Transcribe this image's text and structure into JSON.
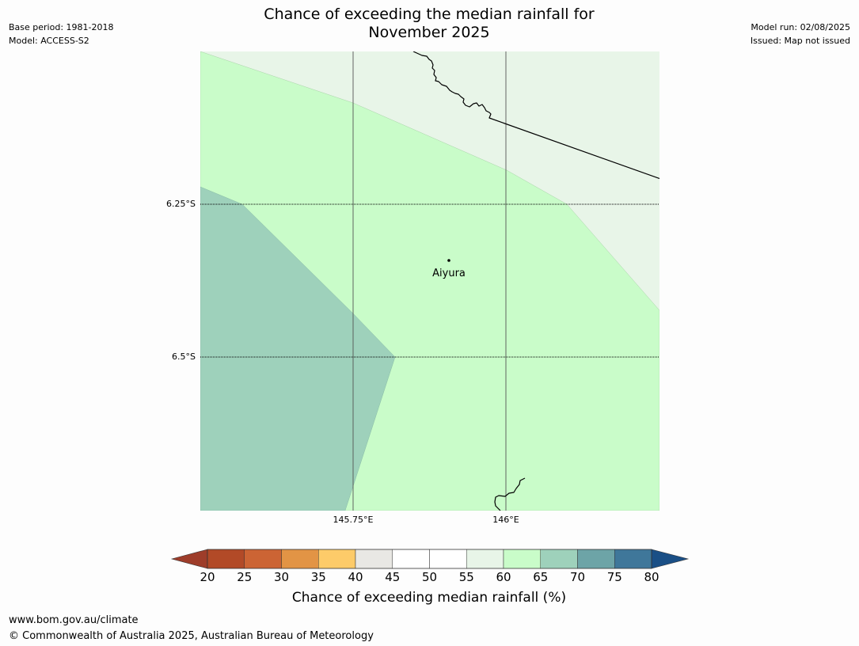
{
  "header": {
    "base_period": "Base period: 1981-2018",
    "model": "Model: ACCESS-S2",
    "model_run": "Model run: 02/08/2025",
    "issued": "Issued: Map not issued",
    "title_line1": "Chance of exceeding the median rainfall for",
    "title_line2": "November 2025"
  },
  "map": {
    "place_name": "Aiyura",
    "lat_labels": [
      "6.25°S",
      "6.5°S"
    ],
    "lon_labels": [
      "145.75°E",
      "146°E"
    ],
    "region_colors": {
      "band_55_60": "#e8f5e8",
      "band_60_65": "#c9fcc9",
      "band_65_70": "#9ed1bb"
    }
  },
  "legend": {
    "label": "Chance of exceeding median rainfall (%)",
    "ticks": [
      "20",
      "25",
      "30",
      "35",
      "40",
      "45",
      "50",
      "55",
      "60",
      "65",
      "70",
      "75",
      "80"
    ],
    "low_extend_color": "#9e3d2a",
    "high_extend_color": "#1a4f86",
    "colors": [
      "#b24a27",
      "#cc6434",
      "#e29445",
      "#fdcb69",
      "#e9e8e4",
      "#ffffff",
      "#ffffff",
      "#e8f5e8",
      "#c9fcc9",
      "#9ed1bb",
      "#6da4a7",
      "#3f779a"
    ]
  },
  "footer": {
    "url": "www.bom.gov.au/climate",
    "copyright": "© Commonwealth of Australia 2025, Australian Bureau of Meteorology"
  }
}
